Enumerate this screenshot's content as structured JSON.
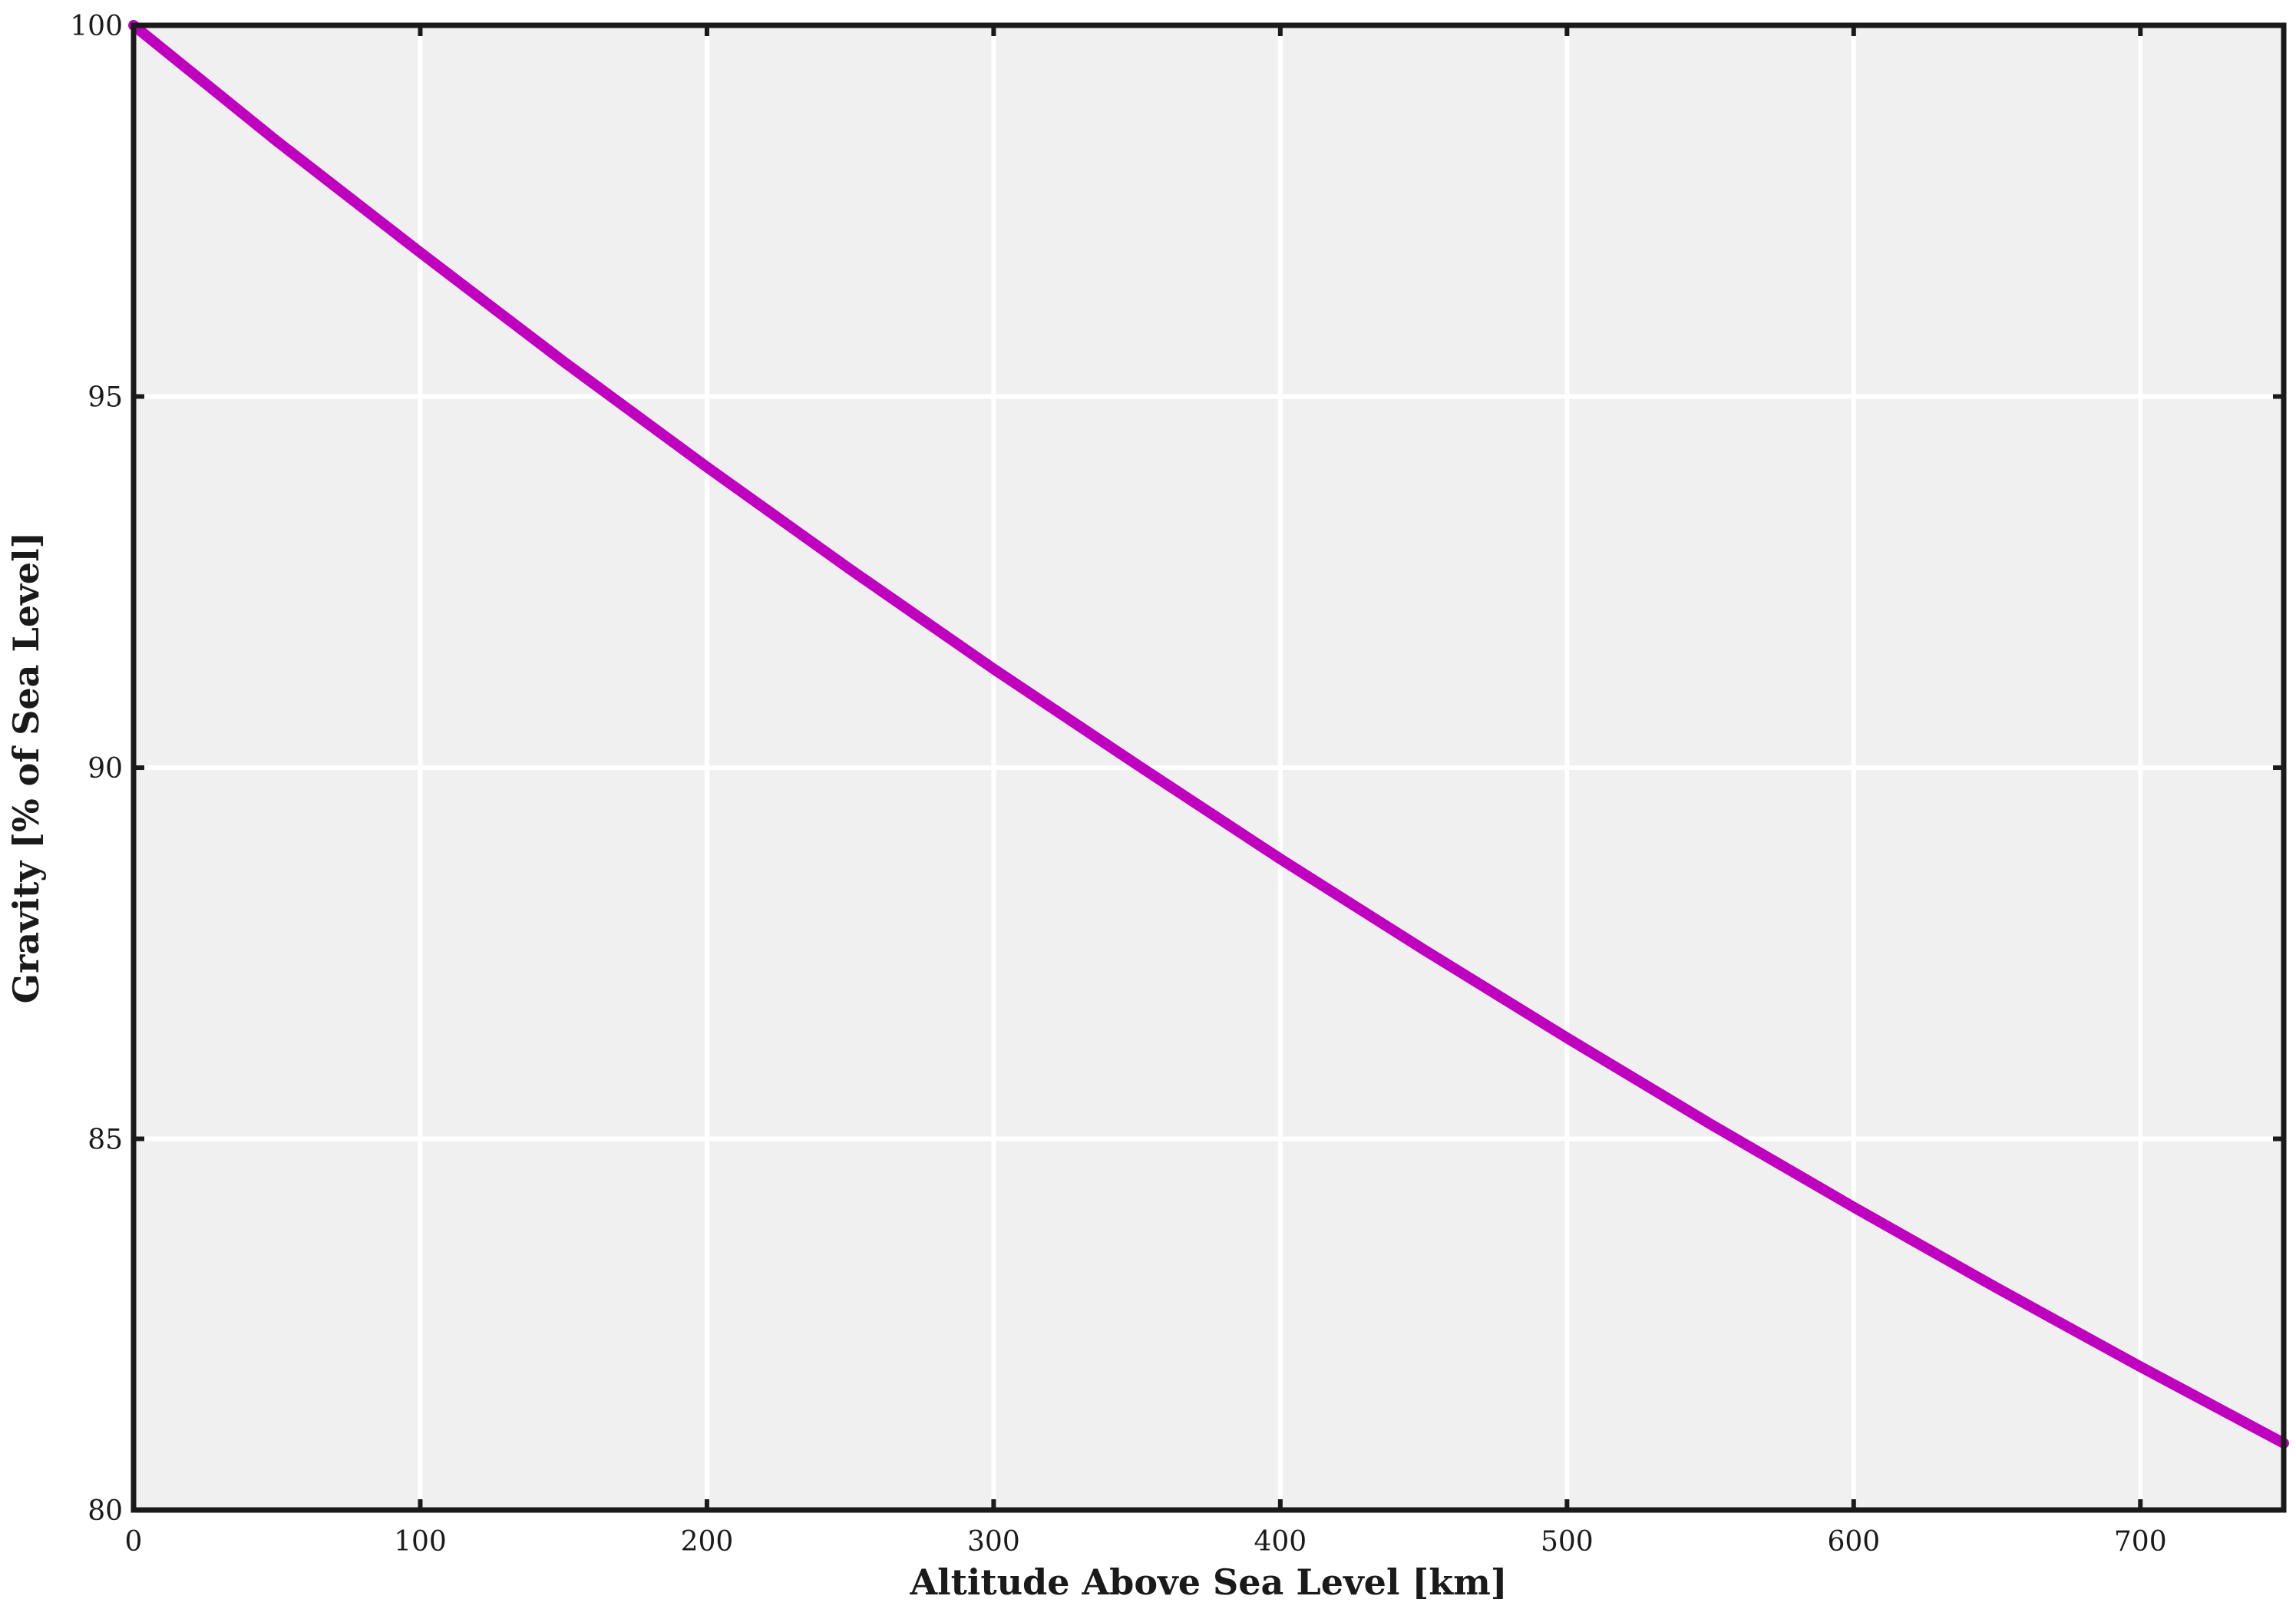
{
  "chart_data": {
    "type": "line",
    "title": "",
    "xlabel": "Altitude Above Sea Level [km]",
    "ylabel": "Gravity [% of Sea Level]",
    "xlim": [
      0,
      750
    ],
    "ylim": [
      80,
      100
    ],
    "xticks": [
      0,
      100,
      200,
      300,
      400,
      500,
      600,
      700
    ],
    "yticks": [
      80,
      85,
      90,
      95,
      100
    ],
    "xtick_labels": [
      "0",
      "100",
      "200",
      "300",
      "400",
      "500",
      "600",
      "700"
    ],
    "ytick_labels": [
      "80",
      "85",
      "90",
      "95",
      "100"
    ],
    "grid": true,
    "series": [
      {
        "name": "Gravity",
        "color": "#bf00bf",
        "x": [
          0,
          50,
          100,
          150,
          200,
          250,
          300,
          350,
          400,
          450,
          500,
          550,
          600,
          650,
          700,
          750
        ],
        "values": [
          100.0,
          98.44,
          96.94,
          95.47,
          94.05,
          92.67,
          91.33,
          90.04,
          88.77,
          87.55,
          86.36,
          85.2,
          84.08,
          82.99,
          81.93,
          80.9
        ]
      }
    ],
    "colors": {
      "plot_background": "#f0f0f0",
      "grid": "#ffffff",
      "axes": "#1a1a1a"
    }
  }
}
